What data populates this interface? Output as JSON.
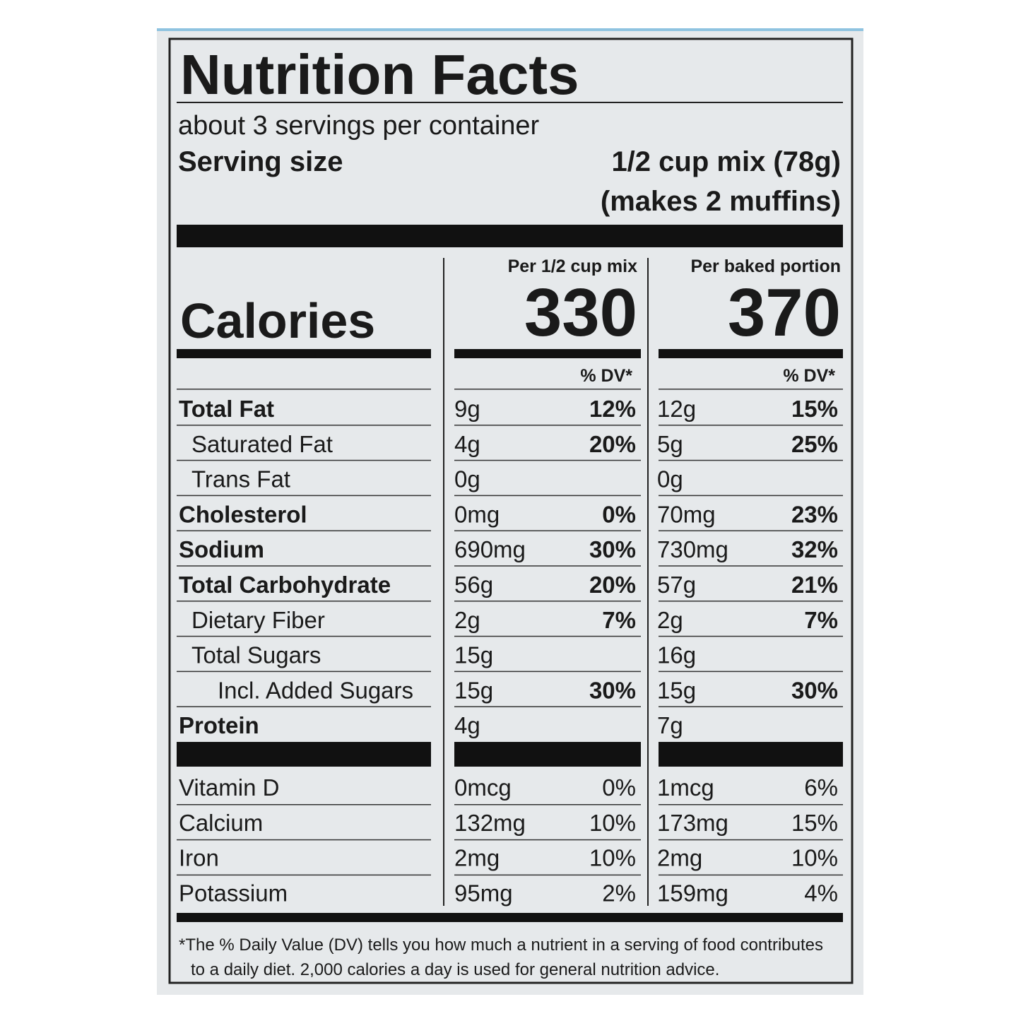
{
  "title": "Nutrition Facts",
  "servings": "about 3 servings per container",
  "serving_size": {
    "label": "Serving size",
    "lines": [
      "1/2 cup mix (78g)",
      "(makes 2 muffins)"
    ]
  },
  "columns": [
    "Per 1/2 cup mix",
    "Per baked portion"
  ],
  "calories": {
    "label": "Calories",
    "values": [
      "330",
      "370"
    ]
  },
  "dv_header": [
    "% DV*",
    "% DV*"
  ],
  "nutrients": [
    {
      "name": "Total Fat",
      "level": 0,
      "cells": [
        {
          "amount": "9g",
          "dv": "12%"
        },
        {
          "amount": "12g",
          "dv": "15%"
        }
      ]
    },
    {
      "name": "Saturated Fat",
      "level": 1,
      "cells": [
        {
          "amount": "4g",
          "dv": "20%"
        },
        {
          "amount": "5g",
          "dv": "25%"
        }
      ]
    },
    {
      "name": "Trans Fat",
      "level": 1,
      "cells": [
        {
          "amount": "0g"
        },
        {
          "amount": "0g"
        }
      ]
    },
    {
      "name": "Cholesterol",
      "level": 0,
      "cells": [
        {
          "amount": "0mg",
          "dv": "0%"
        },
        {
          "amount": "70mg",
          "dv": "23%"
        }
      ]
    },
    {
      "name": "Sodium",
      "level": 0,
      "cells": [
        {
          "amount": "690mg",
          "dv": "30%"
        },
        {
          "amount": "730mg",
          "dv": "32%"
        }
      ]
    },
    {
      "name": "Total Carbohydrate",
      "level": 0,
      "cells": [
        {
          "amount": "56g",
          "dv": "20%"
        },
        {
          "amount": "57g",
          "dv": "21%"
        }
      ]
    },
    {
      "name": "Dietary Fiber",
      "level": 1,
      "cells": [
        {
          "amount": "2g",
          "dv": "7%"
        },
        {
          "amount": "2g",
          "dv": "7%"
        }
      ]
    },
    {
      "name": "Total Sugars",
      "level": 1,
      "cells": [
        {
          "amount": "15g"
        },
        {
          "amount": "16g"
        }
      ]
    },
    {
      "name": "Incl. Added Sugars",
      "level": 2,
      "cells": [
        {
          "amount": "15g",
          "dv": "30%"
        },
        {
          "amount": "15g",
          "dv": "30%"
        }
      ]
    },
    {
      "name": "Protein",
      "level": 0,
      "cells": [
        {
          "amount": "4g"
        },
        {
          "amount": "7g"
        }
      ]
    }
  ],
  "vitamins": [
    {
      "name": "Vitamin D",
      "cells": [
        {
          "amount": "0mcg",
          "dv": "0%"
        },
        {
          "amount": "1mcg",
          "dv": "6%"
        }
      ]
    },
    {
      "name": "Calcium",
      "cells": [
        {
          "amount": "132mg",
          "dv": "10%"
        },
        {
          "amount": "173mg",
          "dv": "15%"
        }
      ]
    },
    {
      "name": "Iron",
      "cells": [
        {
          "amount": "2mg",
          "dv": "10%"
        },
        {
          "amount": "2mg",
          "dv": "10%"
        }
      ]
    },
    {
      "name": "Potassium",
      "cells": [
        {
          "amount": "95mg",
          "dv": "2%"
        },
        {
          "amount": "159mg",
          "dv": "4%"
        }
      ]
    }
  ],
  "footnote": [
    "*The % Daily Value (DV) tells you how much a nutrient in a serving of food contributes",
    "to a daily diet. 2,000 calories a day is used for general nutrition advice."
  ]
}
